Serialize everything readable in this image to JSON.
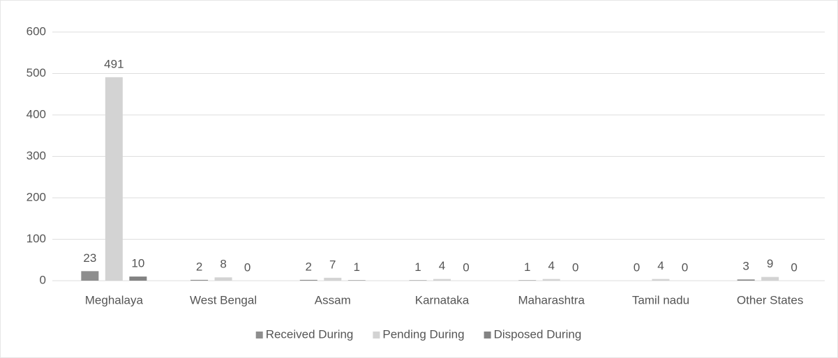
{
  "chart_data": {
    "type": "bar",
    "categories": [
      "Meghalaya",
      "West Bengal",
      "Assam",
      "Karnataka",
      "Maharashtra",
      "Tamil nadu",
      "Other States"
    ],
    "series": [
      {
        "name": "Received During",
        "color": "#8e8e8e",
        "values": [
          23,
          2,
          2,
          1,
          1,
          0,
          3
        ]
      },
      {
        "name": "Pending During",
        "color": "#d3d3d3",
        "values": [
          491,
          8,
          7,
          4,
          4,
          4,
          9
        ]
      },
      {
        "name": "Disposed During",
        "color": "#838383",
        "values": [
          10,
          0,
          1,
          0,
          0,
          0,
          0
        ]
      }
    ],
    "ylim": [
      0,
      600
    ],
    "yticks": [
      0,
      100,
      200,
      300,
      400,
      500,
      600
    ],
    "grid": true,
    "legend": "bottom"
  }
}
